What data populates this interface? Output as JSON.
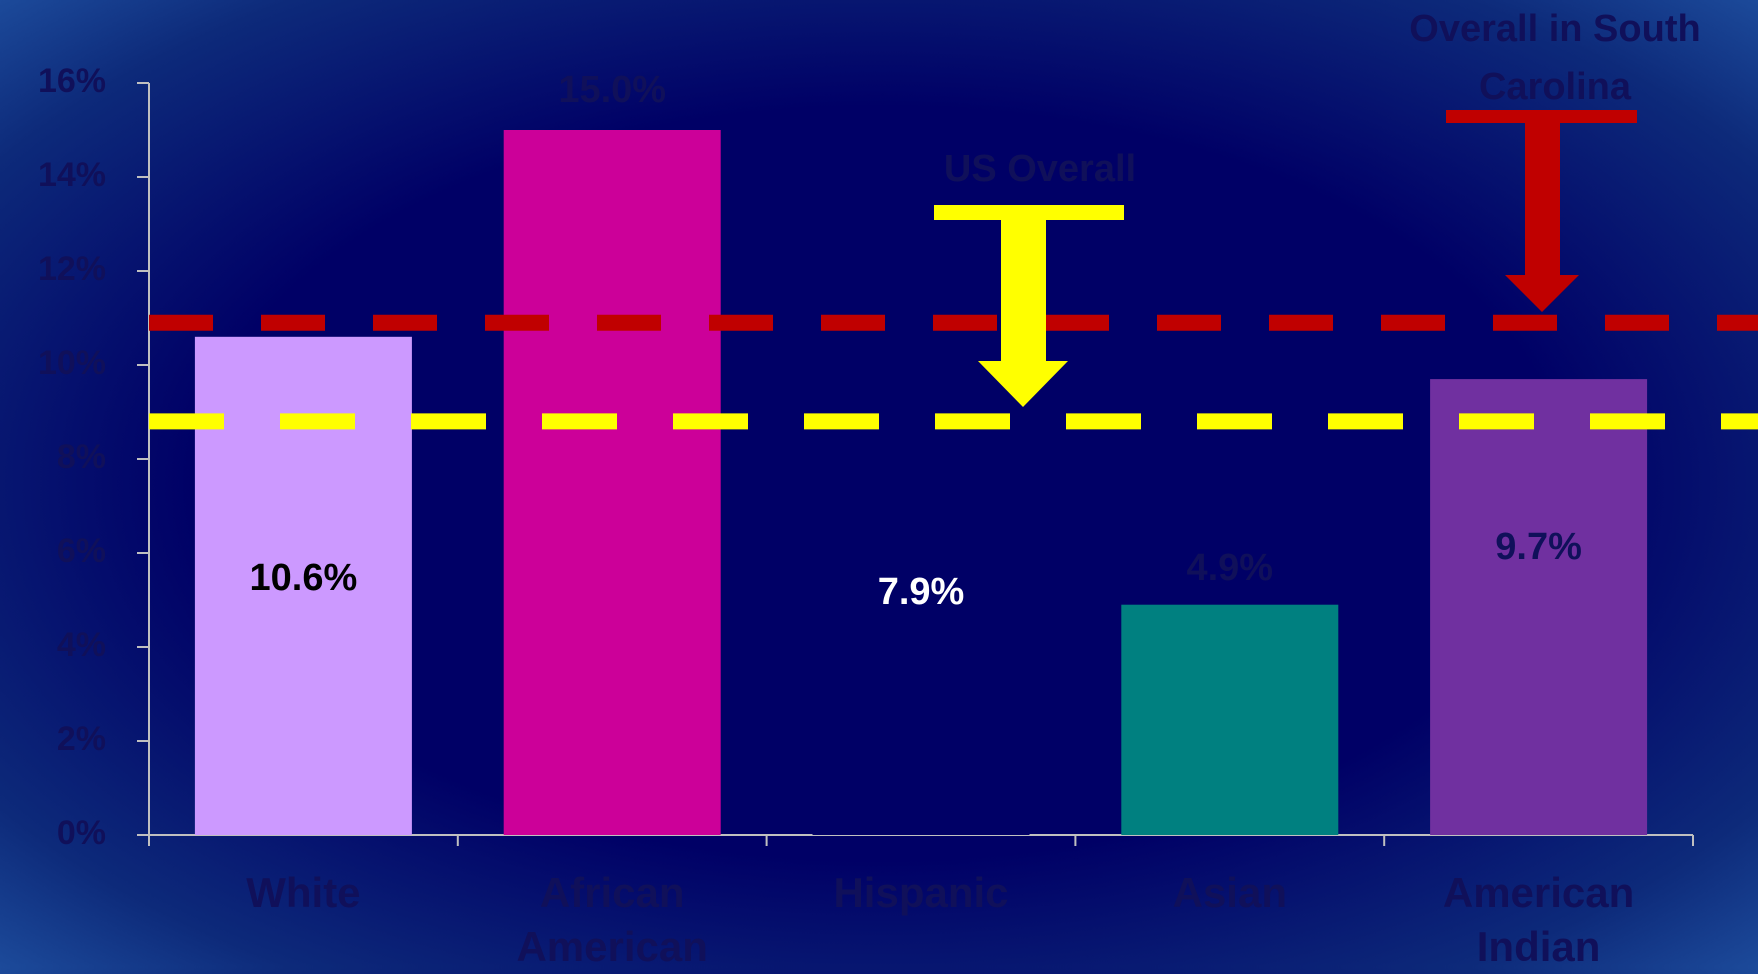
{
  "chart_data": {
    "type": "bar",
    "categories": [
      "White",
      "African American",
      "Hispanic",
      "Asian",
      "American Indian"
    ],
    "values": [
      10.6,
      15.0,
      7.9,
      4.9,
      9.7
    ],
    "value_labels": [
      "10.6%",
      "15.0%",
      "7.9%",
      "4.9%",
      "9.7%"
    ],
    "colors": [
      "#cc99ff",
      "#cc0099",
      "#000066",
      "#008080",
      "#7030a0"
    ],
    "value_label_colors": [
      "#000000",
      "#10105a",
      "#ffffff",
      "#10105a",
      "#10105a"
    ],
    "ylim": [
      0,
      16
    ],
    "yticks": [
      {
        "value": 0,
        "label": "0%"
      },
      {
        "value": 2,
        "label": "2%"
      },
      {
        "value": 4,
        "label": "4%"
      },
      {
        "value": 6,
        "label": "6%"
      },
      {
        "value": 8,
        "label": "8%"
      },
      {
        "value": 10,
        "label": "10%"
      },
      {
        "value": 12,
        "label": "12%"
      },
      {
        "value": 14,
        "label": "14%"
      },
      {
        "value": 16,
        "label": "16%"
      }
    ],
    "reference_lines": [
      {
        "label": "Overall in South Carolina",
        "value": 10.9,
        "color": "#c00000"
      },
      {
        "label": "US Overall",
        "value": 8.8,
        "color": "#ffff00"
      }
    ]
  }
}
